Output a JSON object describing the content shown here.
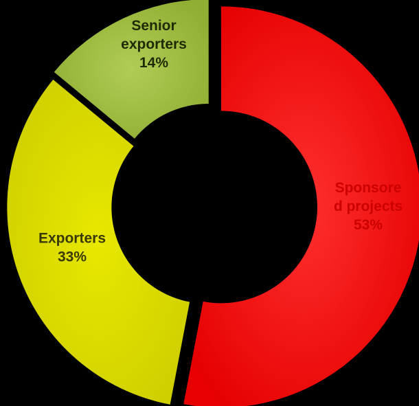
{
  "chart_data": {
    "type": "pie",
    "variant": "donut",
    "slices": [
      {
        "label_lines": [
          "Sponsore",
          "d projects"
        ],
        "percent_text": "53%",
        "value": 53,
        "color": "#ff0000",
        "label_color": "#cc0000"
      },
      {
        "label_lines": [
          "Exporters"
        ],
        "percent_text": "33%",
        "value": 33,
        "color": "#d9d900",
        "label_color": "#3a3a00"
      },
      {
        "label_lines": [
          "Senior",
          "exporters"
        ],
        "percent_text": "14%",
        "value": 14,
        "color": "#9bbb3c",
        "label_color": "#1f2a00"
      }
    ],
    "start_angle": "12 o'clock",
    "direction": "clockwise",
    "legend": "none",
    "background": "#000000"
  }
}
